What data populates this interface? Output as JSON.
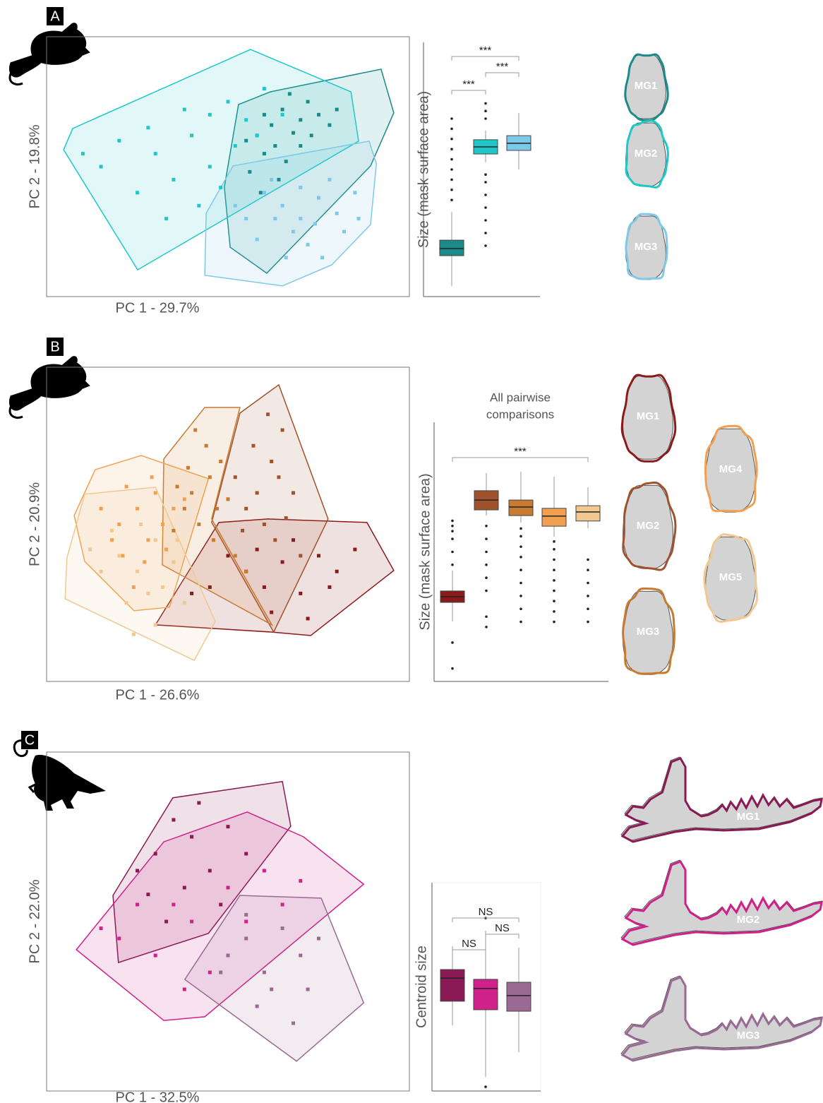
{
  "panels": [
    {
      "label": "A",
      "scatter": {
        "type": "scatter",
        "x_label": "PC 1 - 29.7%",
        "y_label": "PC 2 - 19.8%",
        "xlim": [
          0,
          100
        ],
        "ylim": [
          0,
          100
        ],
        "groups": [
          {
            "name": "MG1",
            "color": "#1a8a8a",
            "hull": {
              "x": [
                61.7,
                92.2,
                95.7,
                89.3,
                60.7,
                50.6,
                49.0,
                52.9
              ],
              "y": [
                78.8,
                87.5,
                70.7,
                50.3,
                9.0,
                19.0,
                42.1,
                73.9
              ]
            },
            "points": {
              "x": [
                60,
                65,
                70,
                72,
                58,
                63,
                68,
                75,
                62,
                67,
                55,
                73,
                78,
                60,
                66,
                70,
                56,
                80,
                64,
                59
              ],
              "y": [
                70,
                72,
                68,
                75,
                62,
                58,
                63,
                70,
                66,
                78,
                60,
                62,
                66,
                55,
                52,
                58,
                48,
                72,
                45,
                40
              ]
            }
          },
          {
            "name": "MG2",
            "color": "#1ec8c8",
            "hull": {
              "x": [
                56.2,
                83.9,
                86.0,
                25.1,
                4.7,
                7.2
              ],
              "y": [
                95.1,
                78.8,
                59.8,
                10.3,
                56.5,
                64.7
              ]
            },
            "points": {
              "x": [
                20,
                30,
                40,
                45,
                50,
                55,
                35,
                25,
                45,
                15,
                60,
                38,
                52,
                28,
                42,
                58,
                48,
                10,
                33,
                65
              ],
              "y": [
                60,
                55,
                62,
                70,
                75,
                68,
                45,
                40,
                50,
                50,
                80,
                72,
                58,
                65,
                35,
                62,
                42,
                55,
                30,
                70
              ]
            }
          },
          {
            "name": "MG3",
            "color": "#7ec8e8",
            "hull": {
              "x": [
                88.9,
                90.9,
                89.3,
                78.6,
                65.0,
                43.6,
                44.0,
                51.4
              ],
              "y": [
                59.8,
                51.1,
                27.7,
                12.2,
                4.1,
                8.2,
                32.1,
                50.3
              ]
            },
            "points": {
              "x": [
                65,
                70,
                75,
                80,
                60,
                68,
                78,
                72,
                55,
                85,
                62,
                74,
                66,
                82,
                58,
                70,
                76,
                63,
                86,
                52
              ],
              "y": [
                35,
                30,
                38,
                32,
                40,
                25,
                45,
                20,
                30,
                40,
                45,
                28,
                15,
                25,
                22,
                42,
                15,
                30,
                30,
                35
              ]
            }
          }
        ]
      },
      "box": {
        "type": "box",
        "y_label": "Size (mask surface area)",
        "ylim": [
          0,
          100
        ],
        "boxes": [
          {
            "q1": 16.1,
            "median": 18.9,
            "q3": 22.2,
            "low": 4.2,
            "high": 33.3,
            "outliers": [
              38,
              42,
              46,
              50,
              54,
              58,
              62,
              66,
              70
            ]
          },
          {
            "q1": 56.1,
            "median": 58.9,
            "q3": 61.7,
            "low": 52.8,
            "high": 65.3,
            "outliers": [
              20,
              25,
              30,
              35,
              40,
              45,
              48,
              70,
              73,
              76
            ]
          },
          {
            "q1": 57.5,
            "median": 60.3,
            "q3": 63.3,
            "low": 50.0,
            "high": 72.2,
            "outliers": []
          }
        ],
        "comparisons": [
          "***",
          "***",
          "***"
        ]
      }
    },
    {
      "label": "B",
      "scatter": {
        "type": "scatter",
        "x_label": "PC 1 - 26.6%",
        "y_label": "PC 2 - 20.9%",
        "xlim": [
          0,
          100
        ],
        "ylim": [
          0,
          100
        ],
        "groups": [
          {
            "name": "MG1",
            "color": "#8b1a1a",
            "hull": {
              "x": [
                30.0,
                47.5,
                61.1,
                88.3,
                95.7,
                72.8,
                62.1
              ],
              "y": [
                18.0,
                50.6,
                51.7,
                50.6,
                35.3,
                14.6,
                15.7
              ]
            },
            "points": {
              "x": [
                55,
                60,
                65,
                70,
                75,
                80,
                50,
                62,
                68,
                85,
                45,
                72,
                58,
                78,
                40
              ],
              "y": [
                35,
                30,
                38,
                28,
                40,
                35,
                40,
                22,
                45,
                42,
                30,
                20,
                42,
                30,
                28
              ]
            }
          },
          {
            "name": "MG2",
            "color": "#a0522d",
            "hull": {
              "x": [
                64.0,
                77.6,
                62.6,
                45.5,
                53.3
              ],
              "y": [
                94.4,
                51.7,
                15.7,
                50.6,
                85.4
              ]
            },
            "points": {
              "x": [
                58,
                62,
                55,
                65,
                60,
                52,
                68,
                63,
                57,
                66,
                50,
                70,
                61,
                54,
                64
              ],
              "y": [
                60,
                70,
                55,
                80,
                50,
                65,
                60,
                45,
                75,
                52,
                58,
                40,
                85,
                48,
                65
              ]
            }
          },
          {
            "name": "MG3",
            "color": "#c87a30",
            "hull": {
              "x": [
                43.6,
                53.3,
                45.5,
                62.1,
                31.9,
                32.3
              ],
              "y": [
                87.2,
                87.2,
                51.7,
                18.0,
                37.1,
                70.8
              ]
            },
            "points": {
              "x": [
                40,
                45,
                38,
                48,
                42,
                36,
                50,
                44,
                46,
                35,
                52,
                41,
                47,
                39,
                55
              ],
              "y": [
                60,
                65,
                55,
                70,
                50,
                62,
                58,
                75,
                45,
                48,
                40,
                80,
                55,
                68,
                35
              ]
            }
          },
          {
            "name": "MG4",
            "color": "#f0a050",
            "hull": {
              "x": [
                26.1,
                44.6,
                33.9,
                24.1,
                10.5,
                7.6,
                13.4
              ],
              "y": [
                71.9,
                64.5,
                23.6,
                22.5,
                38.2,
                52.8,
                67.4
              ]
            },
            "points": {
              "x": [
                25,
                30,
                20,
                28,
                35,
                22,
                32,
                18,
                27,
                38,
                24,
                15,
                33,
                29,
                21
              ],
              "y": [
                55,
                60,
                50,
                45,
                55,
                62,
                50,
                45,
                38,
                58,
                30,
                55,
                42,
                65,
                40
              ]
            }
          },
          {
            "name": "MG5",
            "color": "#f0c890",
            "hull": {
              "x": [
                10.5,
                30.0,
                46.5,
                40.7,
                5.1,
                5.6
              ],
              "y": [
                59.6,
                61.8,
                19.1,
                6.7,
                26.3,
                39.3
              ]
            },
            "points": {
              "x": [
                20,
                25,
                30,
                15,
                28,
                35,
                22,
                18,
                32,
                26,
                38,
                12,
                30,
                24,
                36
              ],
              "y": [
                40,
                35,
                45,
                35,
                28,
                38,
                25,
                48,
                30,
                50,
                25,
                42,
                18,
                15,
                45
              ]
            }
          }
        ]
      },
      "box": {
        "type": "box",
        "y_label": "Size (mask surface area)",
        "ylim": [
          0,
          100
        ],
        "title_lines": [
          "All pairwise",
          "comparisons"
        ],
        "boxes": [
          {
            "q1": 30.5,
            "median": 32.7,
            "q3": 34.9,
            "low": 23.2,
            "high": 42.8,
            "outliers": [
              5,
              15,
              45,
              50,
              55,
              58,
              60,
              62
            ]
          },
          {
            "q1": 66.2,
            "median": 70.0,
            "q3": 73.6,
            "low": 64.0,
            "high": 80.4,
            "outliers": [
              21,
              25,
              35,
              40,
              45,
              50,
              55,
              60
            ]
          },
          {
            "q1": 64.0,
            "median": 67.3,
            "q3": 70.0,
            "low": 61.3,
            "high": 80.9,
            "outliers": [
              23,
              28,
              33,
              38,
              43,
              48,
              52,
              56,
              59
            ]
          },
          {
            "q1": 59.9,
            "median": 63.8,
            "q3": 66.8,
            "low": 55.9,
            "high": 79.0,
            "outliers": [
              23,
              27,
              31,
              35,
              39,
              43,
              47,
              51,
              54
            ]
          },
          {
            "q1": 61.9,
            "median": 65.4,
            "q3": 67.8,
            "low": 59.1,
            "high": 74.9,
            "outliers": [
              23,
              28,
              33,
              38,
              43,
              47
            ]
          }
        ],
        "comparisons": [
          "***"
        ]
      }
    },
    {
      "label": "C",
      "scatter": {
        "type": "scatter",
        "x_label": "PC 1 - 32.5%",
        "y_label": "PC 2 - 22.0%",
        "xlim": [
          0,
          100
        ],
        "ylim": [
          0,
          100
        ],
        "groups": [
          {
            "name": "MG1",
            "color": "#8a1a55",
            "hull": {
              "x": [
                34.8,
                65.0,
                67.3,
                44.6,
                19.8,
                18.3
              ],
              "y": [
                86.5,
                91.3,
                78.1,
                46.5,
                37.9,
                57.7
              ]
            },
            "points": {
              "x": [
                30,
                35,
                40,
                45,
                38,
                50,
                28,
                55,
                42,
                33,
                48,
                25
              ],
              "y": [
                70,
                80,
                75,
                65,
                60,
                78,
                58,
                70,
                85,
                50,
                55,
                65
              ]
            }
          },
          {
            "name": "MG2",
            "color": "#d0208a",
            "hull": {
              "x": [
                32.3,
                55.3,
                70.8,
                87.4,
                43.6,
                32.3,
                8.2
              ],
              "y": [
                73.5,
                82.3,
                75.0,
                61.0,
                21.9,
                20.8,
                41.7
              ]
            },
            "points": {
              "x": [
                20,
                30,
                40,
                50,
                60,
                35,
                45,
                25,
                55,
                65,
                38,
                70,
                15
              ],
              "y": [
                45,
                40,
                50,
                60,
                65,
                55,
                35,
                55,
                50,
                55,
                30,
                62,
                48
              ]
            }
          },
          {
            "name": "MG3",
            "color": "#9a6a95",
            "hull": {
              "x": [
                53.3,
                75.7,
                87.4,
                68.9,
                38.1
              ],
              "y": [
                57.7,
                56.9,
                26.0,
                8.8,
                32.9
              ]
            },
            "points": {
              "x": [
                50,
                55,
                60,
                65,
                70,
                58,
                75,
                62,
                68,
                55,
                72,
                48
              ],
              "y": [
                40,
                45,
                35,
                48,
                40,
                25,
                45,
                30,
                20,
                52,
                30,
                35
              ]
            }
          }
        ]
      },
      "box": {
        "type": "box",
        "y_label": "Centroid size",
        "ylim": [
          0,
          100
        ],
        "boxes": [
          {
            "q1": 43.1,
            "median": 54.2,
            "q3": 58.3,
            "low": 31.5,
            "high": 69.5,
            "outliers": []
          },
          {
            "q1": 39.0,
            "median": 49.2,
            "q3": 53.6,
            "low": 6.8,
            "high": 77.0,
            "outliers": [
              2,
              83
            ]
          },
          {
            "q1": 38.3,
            "median": 45.8,
            "q3": 52.2,
            "low": 18.6,
            "high": 68.8,
            "outliers": []
          }
        ],
        "comparisons": [
          "NS",
          "NS",
          "NS"
        ]
      }
    }
  ]
}
